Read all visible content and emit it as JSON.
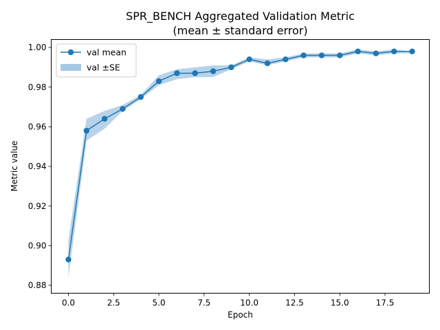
{
  "chart_data": {
    "type": "line",
    "title": "SPR_BENCH Aggregated Validation Metric",
    "subtitle": "(mean ± standard error)",
    "xlabel": "Epoch",
    "ylabel": "Metric value",
    "xlim": [
      -0.95,
      19.95
    ],
    "ylim": [
      0.876,
      1.004
    ],
    "xticks": [
      0.0,
      2.5,
      5.0,
      7.5,
      10.0,
      12.5,
      15.0,
      17.5
    ],
    "xtick_labels": [
      "0.0",
      "2.5",
      "5.0",
      "7.5",
      "10.0",
      "12.5",
      "15.0",
      "17.5"
    ],
    "yticks": [
      0.88,
      0.9,
      0.92,
      0.94,
      0.96,
      0.98,
      1.0
    ],
    "ytick_labels": [
      "0.88",
      "0.90",
      "0.92",
      "0.94",
      "0.96",
      "0.98",
      "1.00"
    ],
    "grid": false,
    "legend_position": "top-left",
    "colors": {
      "line": "#1f77b4",
      "band": "#a6c8e3"
    },
    "x": [
      0,
      1,
      2,
      3,
      4,
      5,
      6,
      7,
      8,
      9,
      10,
      11,
      12,
      13,
      14,
      15,
      16,
      17,
      18,
      19
    ],
    "series": [
      {
        "name": "val mean",
        "values": [
          0.893,
          0.958,
          0.964,
          0.969,
          0.975,
          0.983,
          0.987,
          0.987,
          0.988,
          0.99,
          0.994,
          0.992,
          0.994,
          0.996,
          0.996,
          0.996,
          0.998,
          0.997,
          0.998,
          0.998
        ],
        "lower": [
          0.884,
          0.953,
          0.959,
          0.968,
          0.974,
          0.981,
          0.984,
          0.985,
          0.985,
          0.989,
          0.993,
          0.991,
          0.993,
          0.995,
          0.995,
          0.995,
          0.997,
          0.996,
          0.997,
          0.997
        ],
        "upper": [
          0.903,
          0.964,
          0.968,
          0.971,
          0.976,
          0.986,
          0.989,
          0.99,
          0.991,
          0.991,
          0.995,
          0.994,
          0.995,
          0.997,
          0.997,
          0.997,
          0.999,
          0.998,
          0.999,
          0.998
        ]
      }
    ],
    "legend": [
      {
        "label": "val mean",
        "kind": "line-marker"
      },
      {
        "label": "val ±SE",
        "kind": "band"
      }
    ]
  }
}
